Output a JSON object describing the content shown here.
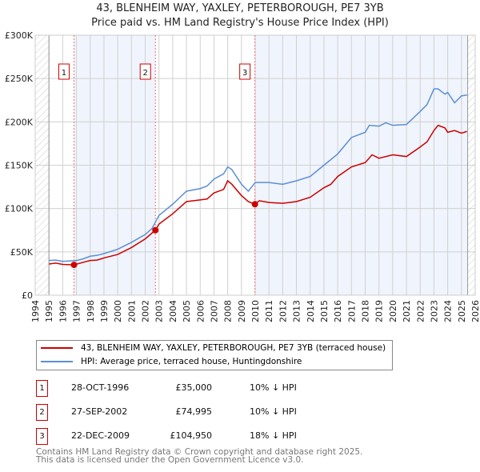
{
  "chart_data": {
    "type": "line",
    "title": "43, BLENHEIM WAY, YAXLEY, PETERBOROUGH, PE7 3YB",
    "subtitle": "Price paid vs. HM Land Registry's House Price Index (HPI)",
    "xlim": [
      1994,
      2026
    ],
    "ylim": [
      0,
      300000
    ],
    "x_ticks": [
      "1994",
      "1995",
      "1996",
      "1997",
      "1998",
      "1999",
      "2000",
      "2001",
      "2002",
      "2003",
      "2004",
      "2005",
      "2006",
      "2007",
      "2008",
      "2009",
      "2010",
      "2011",
      "2012",
      "2013",
      "2014",
      "2015",
      "2016",
      "2017",
      "2018",
      "2019",
      "2020",
      "2021",
      "2022",
      "2023",
      "2024",
      "2025",
      "2026"
    ],
    "y_ticks": [
      {
        "v": 0,
        "label": "£0"
      },
      {
        "v": 50000,
        "label": "£50K"
      },
      {
        "v": 100000,
        "label": "£100K"
      },
      {
        "v": 150000,
        "label": "£150K"
      },
      {
        "v": 200000,
        "label": "£200K"
      },
      {
        "v": 250000,
        "label": "£250K"
      },
      {
        "v": 300000,
        "label": "£300K"
      }
    ],
    "series": [
      {
        "name": "43, BLENHEIM WAY, YAXLEY, PETERBOROUGH, PE7 3YB (terraced house)",
        "color": "#cc0000",
        "x": [
          1995,
          1995.5,
          1996,
          1996.82,
          1997.5,
          1998,
          1998.5,
          1999,
          2000,
          2001,
          2002,
          2002.74,
          2003,
          2004,
          2005,
          2006,
          2006.5,
          2007,
          2007.7,
          2008,
          2008.3,
          2009,
          2009.5,
          2009.98,
          2010.3,
          2011,
          2012,
          2013,
          2014,
          2015,
          2015.5,
          2016,
          2017,
          2018,
          2018.5,
          2019,
          2020,
          2021,
          2022,
          2022.5,
          2023,
          2023.3,
          2023.8,
          2024,
          2024.5,
          2025,
          2025.4
        ],
        "y": [
          36000,
          37000,
          35500,
          35000,
          38000,
          40000,
          40500,
          43000,
          47000,
          55000,
          65000,
          74995,
          82000,
          94000,
          108000,
          110000,
          111000,
          118000,
          122000,
          132000,
          128000,
          115000,
          108000,
          104950,
          109000,
          107000,
          106000,
          108000,
          113000,
          124000,
          128000,
          137000,
          148000,
          153000,
          162000,
          158000,
          162000,
          160000,
          171000,
          177000,
          190000,
          196000,
          193000,
          188000,
          190000,
          187000,
          189000
        ]
      },
      {
        "name": "HPI: Average price, terraced house, Huntingdonshire",
        "color": "#5b8fd4",
        "x": [
          1995,
          1995.5,
          1996,
          1997,
          1997.5,
          1998,
          1998.5,
          1999,
          2000,
          2001,
          2002,
          2002.5,
          2003,
          2004,
          2005,
          2006,
          2006.5,
          2007,
          2007.7,
          2008,
          2008.3,
          2009,
          2009.5,
          2010,
          2011,
          2012,
          2013,
          2014,
          2015,
          2016,
          2017,
          2018,
          2018.3,
          2019,
          2019.5,
          2020,
          2021,
          2022,
          2022.5,
          2023,
          2023.3,
          2023.8,
          2024,
          2024.5,
          2025,
          2025.4
        ],
        "y": [
          40000,
          40500,
          39000,
          40000,
          42000,
          45000,
          46000,
          48000,
          53000,
          61000,
          70000,
          77000,
          92000,
          105000,
          120000,
          123000,
          126000,
          134000,
          140000,
          148000,
          145000,
          128000,
          120000,
          130000,
          130000,
          128000,
          132000,
          137000,
          150000,
          163000,
          182000,
          188000,
          196000,
          195000,
          199000,
          196000,
          197000,
          212000,
          220000,
          238000,
          238000,
          232000,
          234000,
          222000,
          230000,
          231000
        ]
      }
    ],
    "sales": [
      {
        "n": "1",
        "x": 1996.82,
        "y": 35000
      },
      {
        "n": "2",
        "x": 2002.74,
        "y": 74995
      },
      {
        "n": "3",
        "x": 2009.98,
        "y": 104950
      }
    ]
  },
  "table": [
    {
      "n": "1",
      "date": "28-OCT-1996",
      "price": "£35,000",
      "hpi": "10% ↓ HPI"
    },
    {
      "n": "2",
      "date": "27-SEP-2002",
      "price": "£74,995",
      "hpi": "10% ↓ HPI"
    },
    {
      "n": "3",
      "date": "22-DEC-2009",
      "price": "£104,950",
      "hpi": "18% ↓ HPI"
    }
  ],
  "footer": [
    "Contains HM Land Registry data © Crown copyright and database right 2025.",
    "This data is licensed under the Open Government Licence v3.0."
  ]
}
